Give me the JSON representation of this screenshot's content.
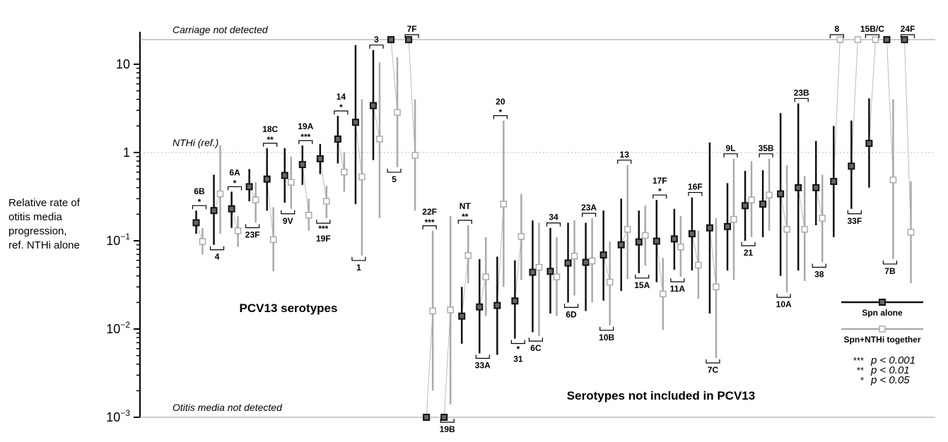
{
  "chart_data": {
    "type": "scatter",
    "title": "",
    "ylabel_lines": [
      "Relative rate of",
      "otitis media",
      "progression,",
      "ref. NTHi alone"
    ],
    "yscale": "log",
    "ylim": [
      0.001,
      25
    ],
    "yticks": [
      {
        "value": 0.001,
        "base": "10",
        "exp": "−3"
      },
      {
        "value": 0.01,
        "base": "10",
        "exp": "−2"
      },
      {
        "value": 0.1,
        "base": "10",
        "exp": "−1"
      },
      {
        "value": 1,
        "base": "1",
        "exp": ""
      },
      {
        "value": 10,
        "base": "10",
        "exp": ""
      }
    ],
    "reference_lines": [
      {
        "label": "Carriage not detected",
        "value": 19,
        "style": "solid"
      },
      {
        "label": "NTHi (ref.)",
        "value": 1,
        "style": "dotted"
      },
      {
        "label": "Otitis media not detected",
        "value": 0.001,
        "style": "solid"
      }
    ],
    "groups": [
      {
        "label": "PCV13 serotypes"
      },
      {
        "label": "Serotypes not included in PCV13"
      }
    ],
    "legend": {
      "position": "right",
      "entries": [
        {
          "label": "Spn alone",
          "color": "#111111"
        },
        {
          "label": "Spn+NTHi together",
          "color": "#aaaaaa"
        }
      ]
    },
    "significance_key": [
      {
        "stars": "***",
        "p": "p < 0.001"
      },
      {
        "stars": "**",
        "p": "p < 0.01"
      },
      {
        "stars": "*",
        "p": "p < 0.05"
      }
    ],
    "series": [
      {
        "name": "Spn alone",
        "color": "#111111",
        "fill": "#666666"
      },
      {
        "name": "Spn+NTHi together",
        "color": "#aaaaaa",
        "fill": "#ffffff"
      }
    ],
    "points": [
      {
        "serotype": "6B",
        "alone": [
          0.16,
          0.12,
          0.22
        ],
        "together": [
          0.098,
          0.07,
          0.14
        ],
        "sig": "*",
        "label_pos": "top",
        "group": 1
      },
      {
        "serotype": "4",
        "alone": [
          0.22,
          0.09,
          0.56
        ],
        "together": [
          0.34,
          0.12,
          1.2
        ],
        "sig": "",
        "label_pos": "bottom",
        "group": 1
      },
      {
        "serotype": "6A",
        "alone": [
          0.23,
          0.14,
          0.36
        ],
        "together": [
          0.13,
          0.085,
          0.19
        ],
        "sig": "*",
        "label_pos": "top",
        "group": 1
      },
      {
        "serotype": "23F",
        "alone": [
          0.41,
          0.28,
          0.65
        ],
        "together": [
          0.29,
          0.16,
          0.46
        ],
        "sig": "",
        "label_pos": "bottom",
        "group": 1
      },
      {
        "serotype": "18C",
        "alone": [
          0.5,
          0.22,
          1.12
        ],
        "together": [
          0.103,
          0.045,
          0.24
        ],
        "sig": "**",
        "label_pos": "top",
        "group": 1
      },
      {
        "serotype": "9V",
        "alone": [
          0.55,
          0.27,
          1.12
        ],
        "together": [
          0.46,
          0.23,
          0.9
        ],
        "sig": "",
        "label_pos": "bottom",
        "group": 1
      },
      {
        "serotype": "19A",
        "alone": [
          0.73,
          0.43,
          1.2
        ],
        "together": [
          0.195,
          0.13,
          0.3
        ],
        "sig": "***",
        "label_pos": "top",
        "group": 1
      },
      {
        "serotype": "19F",
        "alone": [
          0.85,
          0.57,
          1.25
        ],
        "together": [
          0.28,
          0.18,
          0.42
        ],
        "sig": "***",
        "label_pos": "bottom",
        "group": 1
      },
      {
        "serotype": "14",
        "alone": [
          1.42,
          0.75,
          2.6
        ],
        "together": [
          0.6,
          0.36,
          1.0
        ],
        "sig": "*",
        "label_pos": "top",
        "group": 1
      },
      {
        "serotype": "1",
        "alone": [
          2.2,
          0.26,
          16.5
        ],
        "together": [
          0.53,
          0.068,
          4.0
        ],
        "sig": "",
        "label_pos": "bottom",
        "group": 1
      },
      {
        "serotype": "3",
        "alone": [
          3.4,
          0.82,
          14.5
        ],
        "together": [
          1.42,
          0.18,
          10.5
        ],
        "sig": "",
        "label_pos": "top",
        "group": 1
      },
      {
        "serotype": "5",
        "alone": [
          19,
          null,
          null
        ],
        "together": [
          2.85,
          0.68,
          12.0
        ],
        "sig": "",
        "label_pos": "bottom",
        "group": 1
      },
      {
        "serotype": "7F",
        "alone": [
          19,
          null,
          null
        ],
        "together": [
          0.93,
          0.22,
          4.0
        ],
        "sig": "",
        "label_pos": "top",
        "group": 1
      },
      {
        "serotype": "22F",
        "alone": [
          0.001,
          null,
          null
        ],
        "together": [
          0.016,
          0.002,
          0.13
        ],
        "sig": "***",
        "label_pos": "top",
        "group": 2
      },
      {
        "serotype": "19B",
        "alone": [
          0.001,
          null,
          null
        ],
        "together": [
          0.0165,
          0.0014,
          0.19
        ],
        "sig": "",
        "label_pos": "bottom",
        "group": 2
      },
      {
        "serotype": "NT",
        "alone": [
          0.014,
          0.0068,
          0.03
        ],
        "together": [
          0.068,
          0.033,
          0.15
        ],
        "sig": "**",
        "label_pos": "top",
        "group": 2
      },
      {
        "serotype": "33A",
        "alone": [
          0.0178,
          0.0053,
          0.062
        ],
        "together": [
          0.039,
          0.014,
          0.11
        ],
        "sig": "",
        "label_pos": "bottom",
        "group": 2
      },
      {
        "serotype": "20",
        "alone": [
          0.0185,
          0.0051,
          0.066
        ],
        "together": [
          0.26,
          0.03,
          2.3
        ],
        "sig": "*",
        "label_pos": "top",
        "group": 2
      },
      {
        "serotype": "31",
        "alone": [
          0.0208,
          0.0078,
          0.06
        ],
        "together": [
          0.112,
          0.036,
          0.34
        ],
        "sig": "*",
        "label_pos": "bottom",
        "group": 2
      },
      {
        "serotype": "6C",
        "alone": [
          0.044,
          0.0092,
          0.17
        ],
        "together": [
          0.05,
          0.0083,
          0.16
        ],
        "sig": "",
        "label_pos": "bottom",
        "group": 2
      },
      {
        "serotype": "34",
        "alone": [
          0.045,
          0.015,
          0.14
        ],
        "together": [
          0.039,
          0.014,
          0.11
        ],
        "sig": "",
        "label_pos": "top",
        "group": 2
      },
      {
        "serotype": "6D",
        "alone": [
          0.056,
          0.02,
          0.16
        ],
        "together": [
          0.067,
          0.024,
          0.17
        ],
        "sig": "",
        "label_pos": "bottom",
        "group": 2
      },
      {
        "serotype": "23A",
        "alone": [
          0.057,
          0.016,
          0.16
        ],
        "together": [
          0.059,
          0.02,
          0.18
        ],
        "sig": "",
        "label_pos": "top",
        "group": 2
      },
      {
        "serotype": "10B",
        "alone": [
          0.069,
          0.021,
          0.22
        ],
        "together": [
          0.034,
          0.011,
          0.098
        ],
        "sig": "",
        "label_pos": "bottom",
        "group": 2
      },
      {
        "serotype": "13",
        "alone": [
          0.09,
          0.027,
          0.3
        ],
        "together": [
          0.135,
          0.037,
          0.72
        ],
        "sig": "",
        "label_pos": "top",
        "group": 2
      },
      {
        "serotype": "15A",
        "alone": [
          0.097,
          0.043,
          0.22
        ],
        "together": [
          0.115,
          0.052,
          0.25
        ],
        "sig": "",
        "label_pos": "bottom",
        "group": 2
      },
      {
        "serotype": "17F",
        "alone": [
          0.099,
          0.034,
          0.29
        ],
        "together": [
          0.025,
          0.0098,
          0.064
        ],
        "sig": "*",
        "label_pos": "top",
        "group": 2
      },
      {
        "serotype": "11A",
        "alone": [
          0.105,
          0.047,
          0.23
        ],
        "together": [
          0.085,
          0.039,
          0.19
        ],
        "sig": "",
        "label_pos": "bottom",
        "group": 2
      },
      {
        "serotype": "16F",
        "alone": [
          0.12,
          0.046,
          0.31
        ],
        "together": [
          0.053,
          0.022,
          0.13
        ],
        "sig": "",
        "label_pos": "top",
        "group": 2
      },
      {
        "serotype": "7C",
        "alone": [
          0.14,
          0.015,
          1.3
        ],
        "together": [
          0.03,
          0.0047,
          0.18
        ],
        "sig": "",
        "label_pos": "bottom",
        "group": 2
      },
      {
        "serotype": "9L",
        "alone": [
          0.145,
          0.046,
          0.45
        ],
        "together": [
          0.175,
          0.036,
          0.85
        ],
        "sig": "",
        "label_pos": "top",
        "group": 2
      },
      {
        "serotype": "21",
        "alone": [
          0.25,
          0.1,
          0.62
        ],
        "together": [
          0.29,
          0.11,
          0.8
        ],
        "sig": "",
        "label_pos": "bottom",
        "group": 2
      },
      {
        "serotype": "35B",
        "alone": [
          0.26,
          0.11,
          0.63
        ],
        "together": [
          0.33,
          0.13,
          0.85
        ],
        "sig": "",
        "label_pos": "top",
        "group": 2
      },
      {
        "serotype": "10A",
        "alone": [
          0.34,
          0.04,
          2.8
        ],
        "together": [
          0.135,
          0.026,
          0.72
        ],
        "sig": "",
        "label_pos": "bottom",
        "group": 2
      },
      {
        "serotype": "23B",
        "alone": [
          0.4,
          0.046,
          3.6
        ],
        "together": [
          0.135,
          0.035,
          0.54
        ],
        "sig": "",
        "label_pos": "top",
        "group": 2
      },
      {
        "serotype": "38",
        "alone": [
          0.4,
          0.15,
          1.35
        ],
        "together": [
          0.18,
          0.057,
          0.56
        ],
        "sig": "",
        "label_pos": "bottom",
        "group": 2
      },
      {
        "serotype": "8",
        "alone": [
          0.47,
          0.11,
          2.0
        ],
        "together": [
          19,
          null,
          null
        ],
        "sig": "",
        "label_pos": "top",
        "group": 2
      },
      {
        "serotype": "33F",
        "alone": [
          0.7,
          0.23,
          2.3
        ],
        "together": [
          19,
          null,
          null
        ],
        "sig": "",
        "label_pos": "bottom",
        "group": 2
      },
      {
        "serotype": "15B/C",
        "alone": [
          1.27,
          0.4,
          4.1
        ],
        "together": [
          19,
          null,
          null
        ],
        "sig": "",
        "label_pos": "top",
        "group": 2
      },
      {
        "serotype": "7B",
        "alone": [
          19,
          null,
          null
        ],
        "together": [
          0.49,
          0.062,
          4.0
        ],
        "sig": "",
        "label_pos": "bottom",
        "group": 2
      },
      {
        "serotype": "24F",
        "alone": [
          19,
          null,
          null
        ],
        "together": [
          0.125,
          0.033,
          0.47
        ],
        "sig": "",
        "label_pos": "top",
        "group": 2
      }
    ]
  }
}
